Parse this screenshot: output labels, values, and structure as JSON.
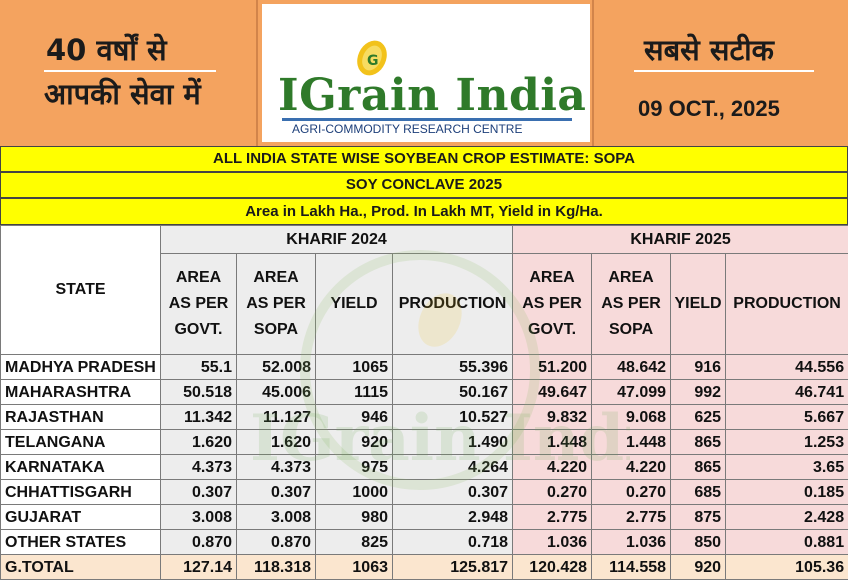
{
  "banner": {
    "left_line1": "40 वर्षों से",
    "left_line2": "आपकी सेवा में",
    "right_line1": "सबसे सटीक",
    "date": "09 OCT., 2025",
    "logo_word": "IGrain India",
    "logo_tagline": "AGRI-COMMODITY RESEARCH CENTRE",
    "logo_grain_letter": "G"
  },
  "headers": {
    "title": "ALL INDIA STATE WISE SOYBEAN CROP ESTIMATE: SOPA",
    "subtitle": "SOY CONCLAVE 2025",
    "units": "Area in Lakh Ha., Prod. In Lakh MT, Yield in Kg/Ha."
  },
  "table": {
    "state_header": "STATE",
    "group_2024": "KHARIF 2024",
    "group_2025": "KHARIF 2025",
    "col_area_govt": [
      "AREA",
      "AS PER",
      "GOVT."
    ],
    "col_area_sopa": [
      "AREA",
      "AS PER",
      "SOPA"
    ],
    "col_yield": "YIELD",
    "col_production": "PRODUCTION",
    "rows": [
      {
        "state": "MADHYA PRADESH",
        "v": [
          "55.1",
          "52.008",
          "1065",
          "55.396",
          "51.200",
          "48.642",
          "916",
          "44.556"
        ]
      },
      {
        "state": "MAHARASHTRA",
        "v": [
          "50.518",
          "45.006",
          "1115",
          "50.167",
          "49.647",
          "47.099",
          "992",
          "46.741"
        ]
      },
      {
        "state": "RAJASTHAN",
        "v": [
          "11.342",
          "11.127",
          "946",
          "10.527",
          "9.832",
          "9.068",
          "625",
          "5.667"
        ]
      },
      {
        "state": "TELANGANA",
        "v": [
          "1.620",
          "1.620",
          "920",
          "1.490",
          "1.448",
          "1.448",
          "865",
          "1.253"
        ]
      },
      {
        "state": "KARNATAKA",
        "v": [
          "4.373",
          "4.373",
          "975",
          "4.264",
          "4.220",
          "4.220",
          "865",
          "3.65"
        ]
      },
      {
        "state": "CHHATTISGARH",
        "v": [
          "0.307",
          "0.307",
          "1000",
          "0.307",
          "0.270",
          "0.270",
          "685",
          "0.185"
        ]
      },
      {
        "state": "GUJARAT",
        "v": [
          "3.008",
          "3.008",
          "980",
          "2.948",
          "2.775",
          "2.775",
          "875",
          "2.428"
        ]
      },
      {
        "state": "OTHER STATES",
        "v": [
          "0.870",
          "0.870",
          "825",
          "0.718",
          "1.036",
          "1.036",
          "850",
          "0.881"
        ]
      }
    ],
    "total": {
      "state": "G.TOTAL",
      "v": [
        "127.14",
        "118.318",
        "1063",
        "125.817",
        "120.428",
        "114.558",
        "920",
        "105.36"
      ]
    }
  },
  "watermark": "IGrain India",
  "colors": {
    "banner": "#f4a35f",
    "header_yellow": "#ffff00",
    "kharif_2024_bg": "#ededed",
    "kharif_2025_bg": "#f7dada",
    "total_bg": "#fbe6cf",
    "logo_green": "#2f7a2a"
  }
}
